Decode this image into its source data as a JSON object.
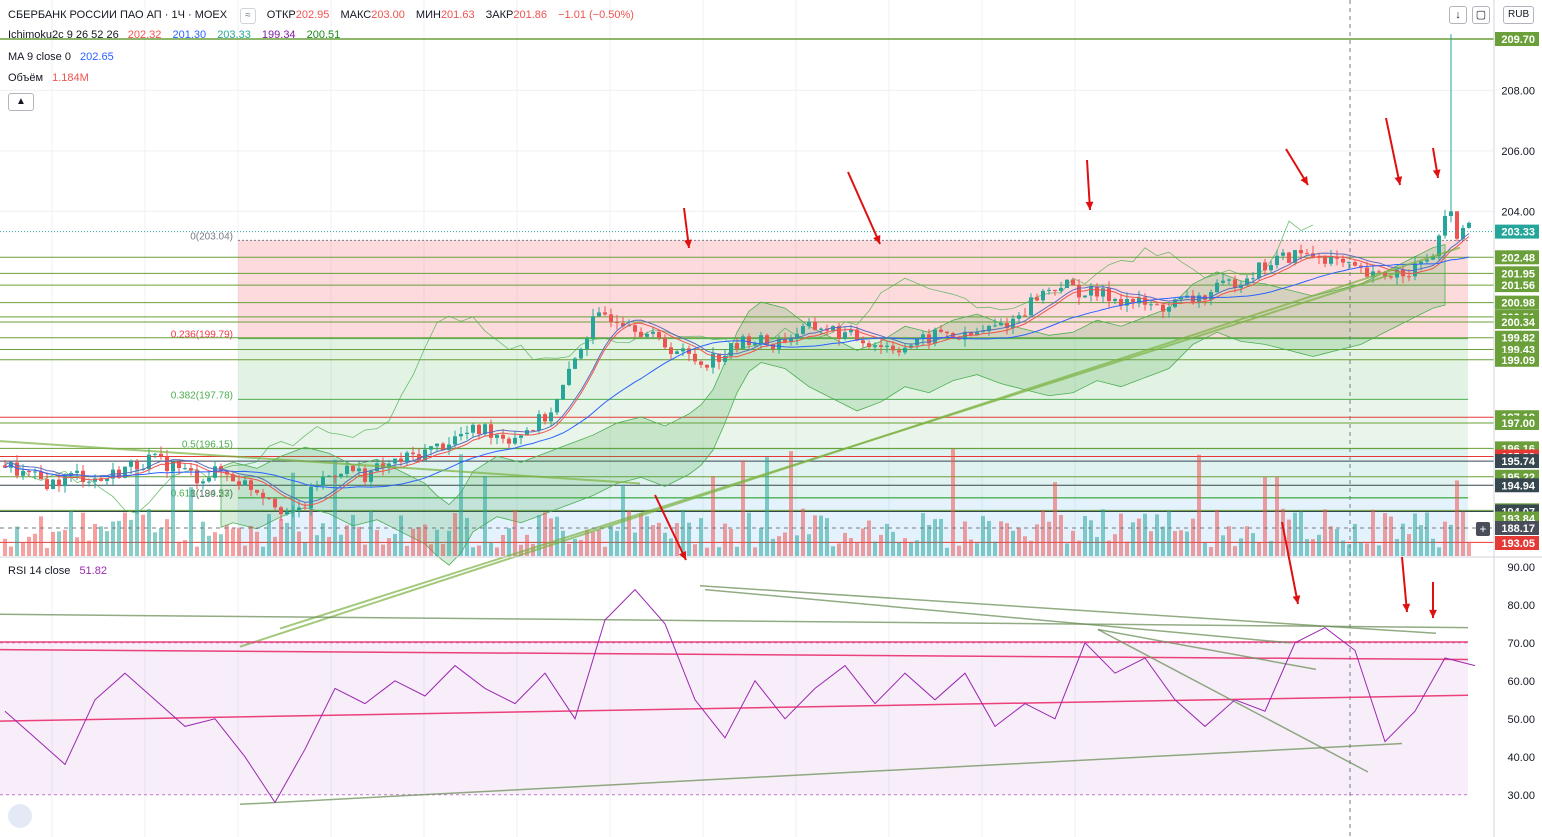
{
  "header": {
    "symbol": "СБЕРБАНК РОССИИ ПАО АП · 1Ч · MOEX",
    "ohlc": [
      {
        "key": "ОТКР",
        "value": "202.95"
      },
      {
        "key": "МАКС",
        "value": "203.00"
      },
      {
        "key": "МИН",
        "value": "201.63"
      },
      {
        "key": "ЗАКР",
        "value": "201.86"
      }
    ],
    "change": "−1.01 (−0.50%)",
    "ichimoku": {
      "label": "Ichimoku2c 9 26 52 26",
      "values": [
        "202.32",
        "201.30",
        "203.33",
        "199.34",
        "200.51"
      ]
    },
    "ma": {
      "label": "MA 9 close 0",
      "value": "202.65"
    },
    "volume": {
      "label": "Объём",
      "value": "1.184M"
    },
    "rsi": {
      "label": "RSI 14 close",
      "value": "51.82"
    },
    "currency": "RUB"
  },
  "colors": {
    "up": "#26a69a",
    "down": "#ef5350",
    "ma": "#2962ff",
    "tenkan": "#ef5350",
    "kijun": "#2962ff",
    "kumo_line": "#3fa34d",
    "rsi": "#9c27b0",
    "hline": "#6a9f3a",
    "arrow": "#e01010"
  },
  "chart_data": [
    {
      "type": "candlestick",
      "title": "СБЕРБАНК РОССИИ ПАО АП · 1Ч · MOEX",
      "ylim": [
        192.6,
        209.8
      ],
      "price_scale_ticks": [
        204.0,
        206.0,
        208.0
      ],
      "price_labels": [
        "209.70",
        "208.00",
        "206.00",
        "204.00",
        "203.33",
        "202.48",
        "201.95",
        "201.56",
        "200.98",
        "200.51",
        "200.34",
        "199.82",
        "199.43",
        "199.09",
        "197.19",
        "197.00",
        "196.16",
        "195.89",
        "195.74",
        "195.22",
        "194.94",
        "194.11",
        "194.07",
        "193.84",
        "188.17",
        "193.05"
      ],
      "fibonacci": [
        {
          "label": "0(203.04)",
          "price": 203.04
        },
        {
          "label": "0.236(199.79)",
          "price": 199.79
        },
        {
          "label": "0.382(197.78)",
          "price": 197.78
        },
        {
          "label": "0.5(196.15)",
          "price": 196.15
        },
        {
          "label": "0.618(194.53)",
          "price": 194.53
        },
        {
          "label": "1(189.27)",
          "price": 189.27
        }
      ],
      "horizontal_levels": [
        209.7,
        202.48,
        201.95,
        201.56,
        200.98,
        200.51,
        200.34,
        199.82,
        199.43,
        199.09,
        197.19,
        197.0,
        196.16,
        195.89,
        195.74,
        195.22,
        194.94,
        194.11,
        194.07,
        193.05
      ],
      "close_path": [
        [
          0,
          195.6
        ],
        [
          4,
          195.2
        ],
        [
          8,
          195.0
        ],
        [
          12,
          195.3
        ],
        [
          16,
          195.1
        ],
        [
          20,
          195.5
        ],
        [
          24,
          195.8
        ],
        [
          28,
          195.6
        ],
        [
          32,
          195.2
        ],
        [
          36,
          195.4
        ],
        [
          40,
          195.0
        ],
        [
          44,
          194.6
        ],
        [
          46,
          194.2
        ],
        [
          48,
          193.9
        ],
        [
          50,
          194.3
        ],
        [
          52,
          195.0
        ],
        [
          56,
          195.5
        ],
        [
          60,
          195.3
        ],
        [
          64,
          195.6
        ],
        [
          68,
          195.9
        ],
        [
          72,
          196.2
        ],
        [
          76,
          196.6
        ],
        [
          80,
          196.8
        ],
        [
          84,
          196.5
        ],
        [
          88,
          196.9
        ],
        [
          90,
          197.2
        ],
        [
          92,
          197.7
        ],
        [
          94,
          198.6
        ],
        [
          96,
          199.6
        ],
        [
          98,
          200.3
        ],
        [
          100,
          200.6
        ],
        [
          104,
          200.4
        ],
        [
          108,
          199.8
        ],
        [
          112,
          199.4
        ],
        [
          116,
          199.0
        ],
        [
          120,
          199.3
        ],
        [
          124,
          199.8
        ],
        [
          128,
          199.6
        ],
        [
          132,
          200.0
        ],
        [
          136,
          200.2
        ],
        [
          140,
          199.9
        ],
        [
          144,
          199.7
        ],
        [
          148,
          199.5
        ],
        [
          152,
          199.6
        ],
        [
          156,
          200.0
        ],
        [
          160,
          199.8
        ],
        [
          164,
          200.1
        ],
        [
          168,
          200.4
        ],
        [
          172,
          201.2
        ],
        [
          176,
          201.6
        ],
        [
          180,
          201.3
        ],
        [
          184,
          201.2
        ],
        [
          188,
          201.0
        ],
        [
          192,
          200.8
        ],
        [
          196,
          201.0
        ],
        [
          200,
          201.2
        ],
        [
          204,
          201.6
        ],
        [
          208,
          202.0
        ],
        [
          212,
          202.4
        ],
        [
          216,
          202.6
        ],
        [
          220,
          202.5
        ],
        [
          224,
          202.1
        ],
        [
          228,
          201.8
        ],
        [
          232,
          202.0
        ],
        [
          236,
          202.2
        ],
        [
          238,
          202.6
        ],
        [
          240,
          203.6
        ],
        [
          242,
          203.3
        ],
        [
          244,
          203.4
        ]
      ]
    },
    {
      "type": "line",
      "title": "RSI 14 close",
      "ylim": [
        26,
        91
      ],
      "yticks": [
        30,
        40,
        50,
        60,
        70,
        80,
        90
      ],
      "x": [
        0,
        5,
        10,
        15,
        20,
        25,
        30,
        35,
        40,
        45,
        50,
        55,
        60,
        65,
        70,
        75,
        80,
        85,
        90,
        95,
        100,
        105,
        110,
        115,
        120,
        125,
        130,
        135,
        140,
        145,
        150,
        155,
        160,
        165,
        170,
        175,
        180,
        185,
        190,
        195,
        200,
        205,
        210,
        215,
        220,
        225,
        230,
        235,
        240,
        245
      ],
      "values": [
        52,
        45,
        38,
        55,
        62,
        55,
        48,
        50,
        40,
        28,
        42,
        58,
        54,
        60,
        56,
        64,
        58,
        54,
        62,
        50,
        76,
        84,
        75,
        55,
        45,
        60,
        50,
        58,
        64,
        54,
        62,
        55,
        62,
        48,
        54,
        50,
        70,
        62,
        66,
        55,
        48,
        55,
        52,
        70,
        74,
        68,
        44,
        52,
        66,
        64
      ]
    }
  ]
}
